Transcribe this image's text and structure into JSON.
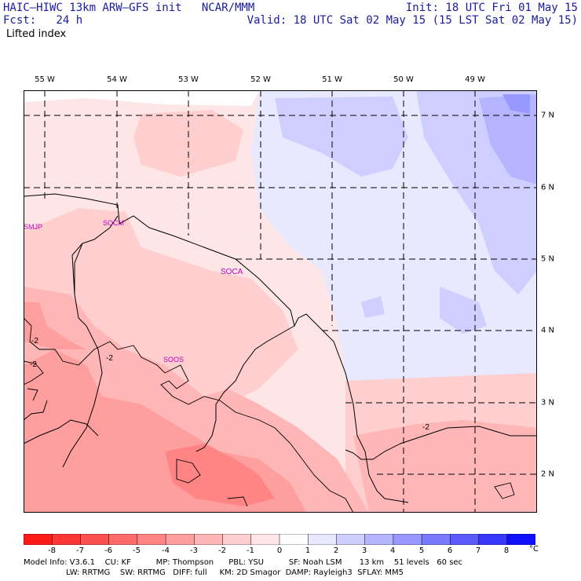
{
  "header": {
    "model_line": "HAIC–HIWC 13km ARW–GFS init   NCAR/MMM",
    "fcst_line": "Fcst:   24 h",
    "field_line": "Lifted index",
    "init_line": "Init: 18 UTC Fri 01 May 15",
    "valid_line": "Valid: 18 UTC Sat 02 May 15 (15 LST Sat 02 May 15)"
  },
  "axes": {
    "longitudes": [
      "55 W",
      "54 W",
      "53 W",
      "52 W",
      "51 W",
      "50 W",
      "49 W"
    ],
    "latitudes": [
      "7 N",
      "6 N",
      "5 N",
      "4 N",
      "3 N",
      "2 N"
    ]
  },
  "stations": [
    "SMJP",
    "SOCM",
    "SOCA",
    "SOOS"
  ],
  "contour_labels": [
    "-2",
    "-2",
    "-2",
    "-2"
  ],
  "colorbar": {
    "ticks": [
      "-8",
      "-7",
      "-6",
      "-5",
      "-4",
      "-3",
      "-2",
      "-1",
      "0",
      "1",
      "2",
      "3",
      "4",
      "5",
      "6",
      "7",
      "8"
    ],
    "unit": "°C",
    "colors": [
      "#ff1a1a",
      "#ff3636",
      "#ff5050",
      "#ff6a6a",
      "#ff8484",
      "#ff9e9e",
      "#ffb6b6",
      "#ffcece",
      "#ffe6e6",
      "#ffffff",
      "#e8e8ff",
      "#cfcfff",
      "#b4b4ff",
      "#9898ff",
      "#7a7aff",
      "#5a5aff",
      "#3838ff",
      "#1010ff"
    ]
  },
  "footer": {
    "line1": "Model Info: V3.6.1    CU: KF          MP: Thompson      PBL: YSU          SF: Noah LSM       13 km    51 levels   60 sec",
    "line2": "                 LW: RRTMG    SW: RRTMG   DIFF: full     KM: 2D Smagor  DAMP: Rayleigh3  SFLAY: MM5"
  }
}
